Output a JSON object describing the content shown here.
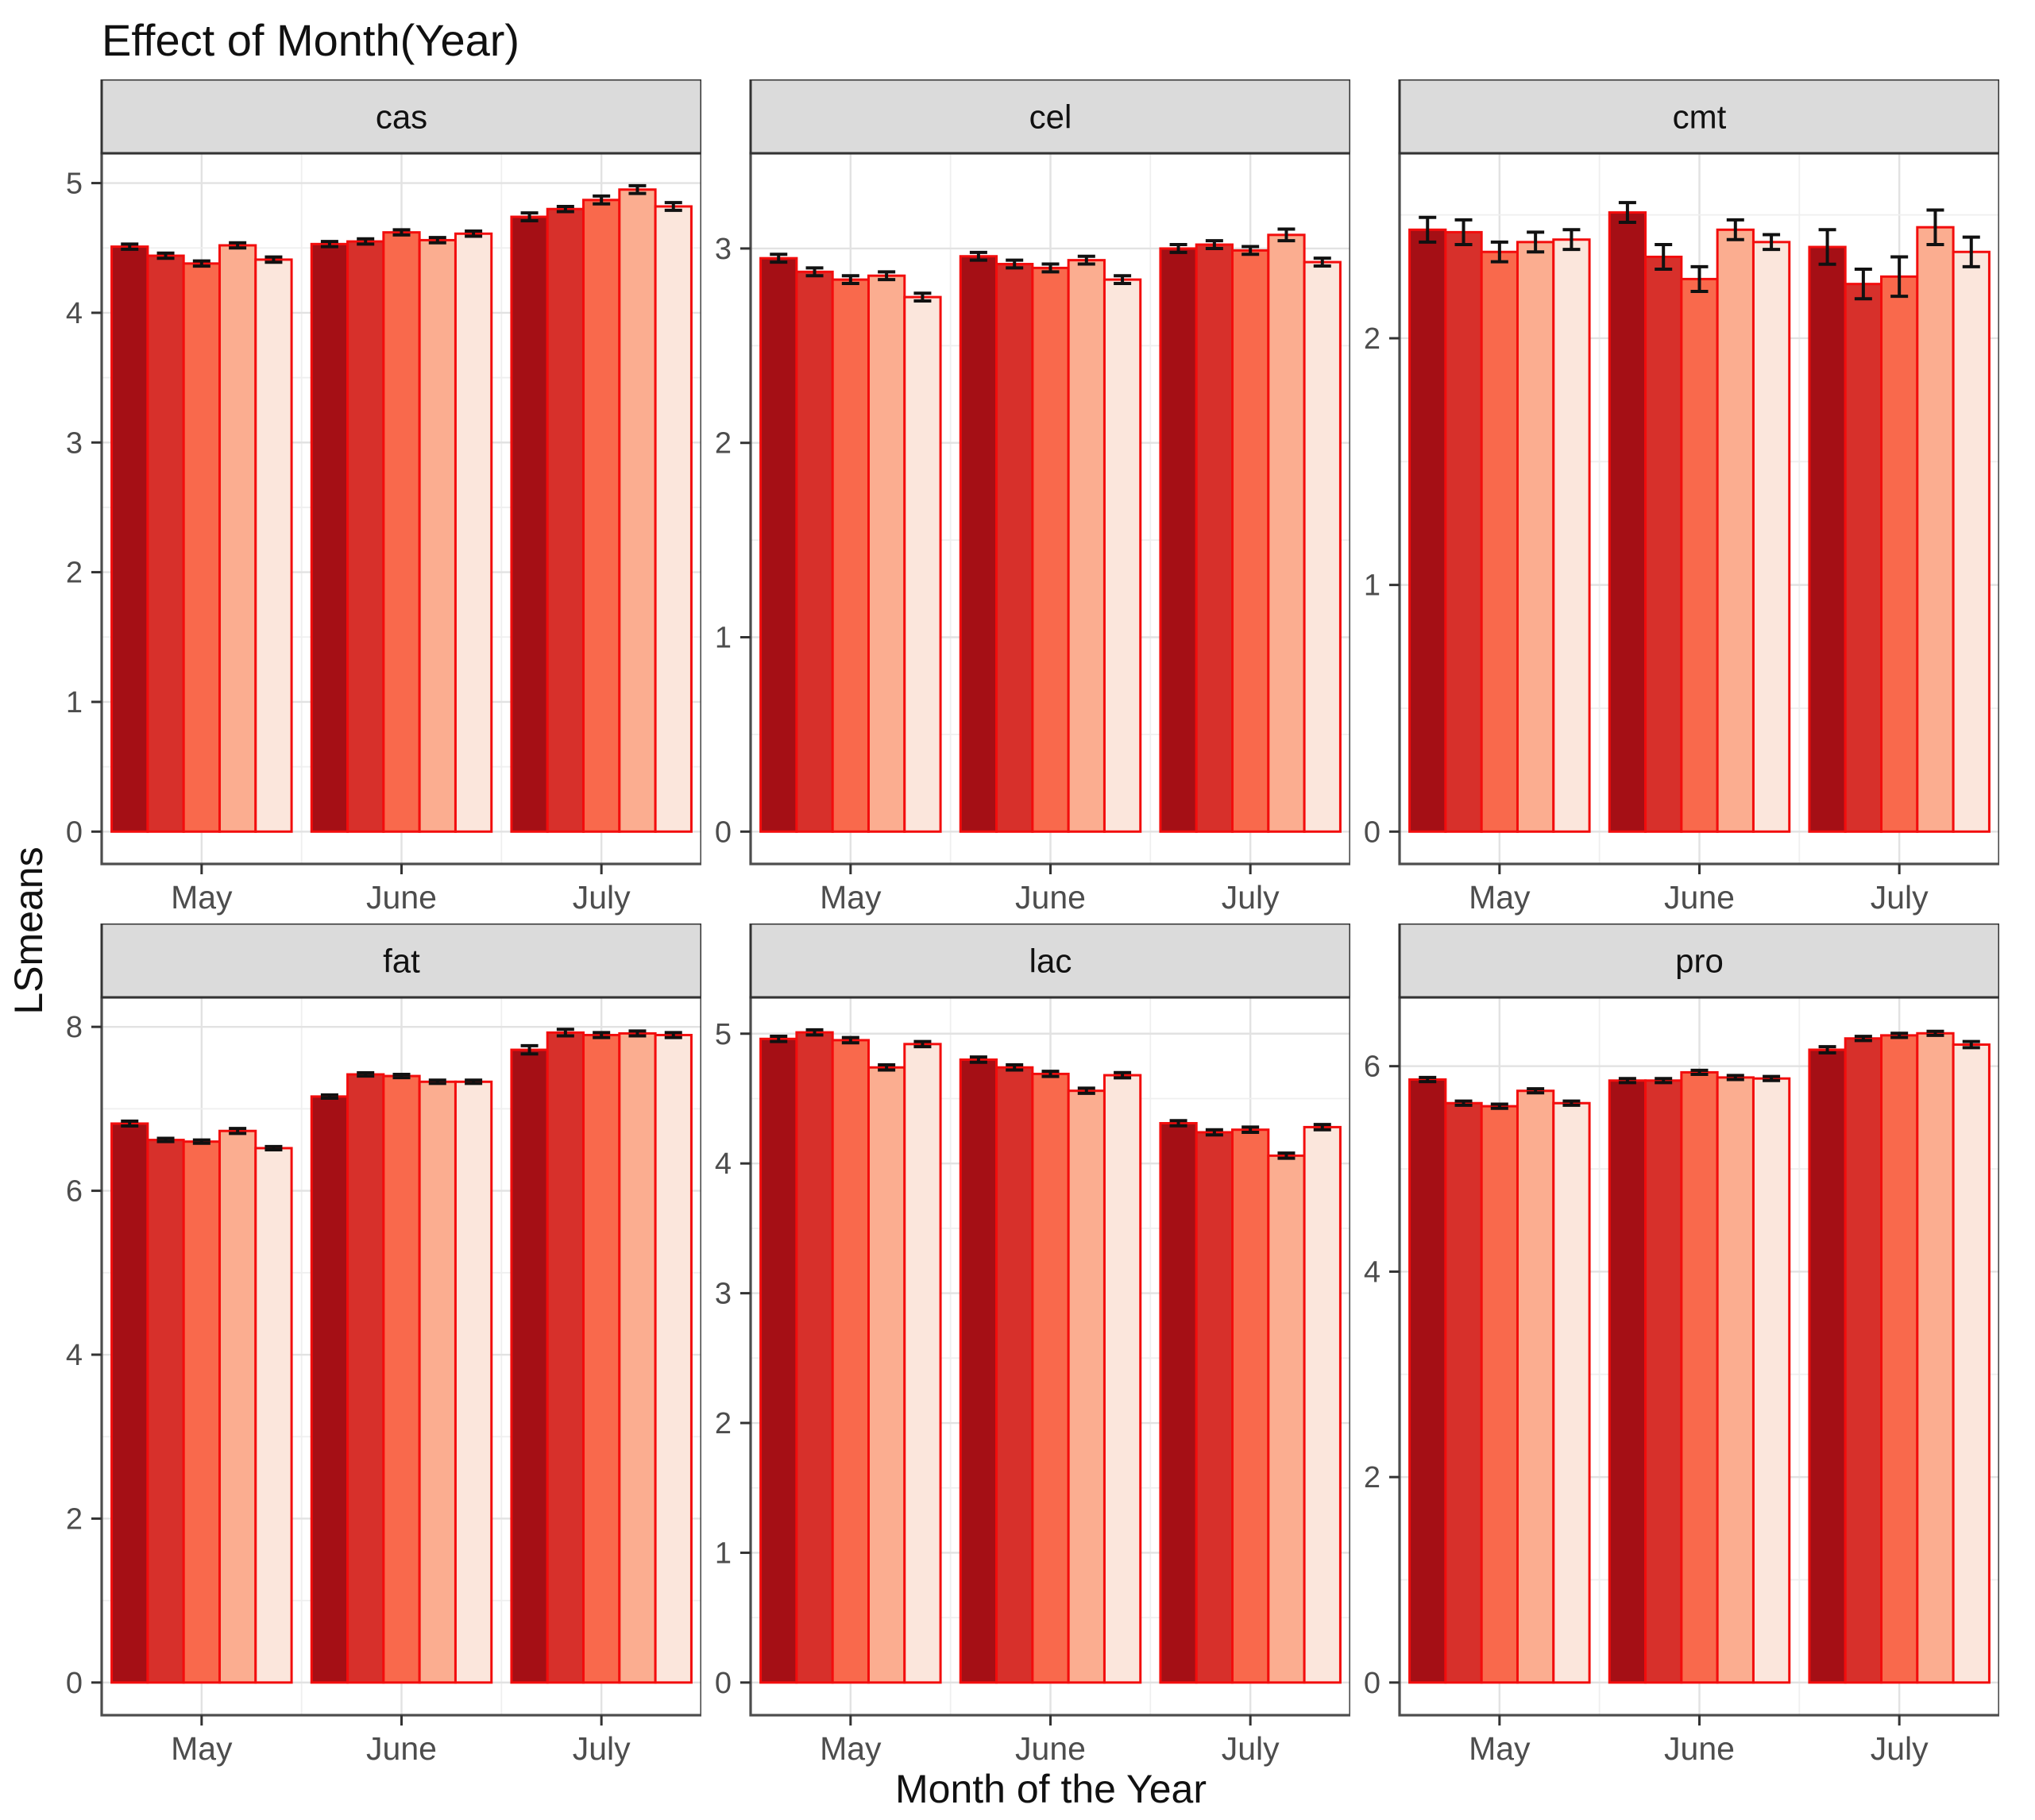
{
  "chart_data": {
    "type": "bar",
    "title": "Effect of Month(Year)",
    "xlabel": "Month of the Year",
    "ylabel": "LSmeans",
    "categories": [
      "May",
      "June",
      "July"
    ],
    "legend": "none",
    "grid": true,
    "bar_outline_color": "#F20D0D",
    "error_bar_color": "#111111",
    "strip_background": "#DBDBDB",
    "strip_border": "#333333",
    "panel_border": "#4D4D4D",
    "tick_label_color": "#4D4D4D",
    "series": [
      {
        "name": "bar-1",
        "color": "#A50F15"
      },
      {
        "name": "bar-2",
        "color": "#D7302B"
      },
      {
        "name": "bar-3",
        "color": "#F9694C"
      },
      {
        "name": "bar-4",
        "color": "#FBAD90"
      },
      {
        "name": "bar-5",
        "color": "#FBE6DC"
      }
    ],
    "facets": [
      {
        "label": "cas",
        "y_breaks": [
          0,
          1,
          2,
          3,
          4,
          5
        ],
        "y_minor": [
          0.5,
          1.5,
          2.5,
          3.5,
          4.5
        ],
        "y_max": 5.23,
        "values": {
          "May": [
            4.51,
            4.44,
            4.38,
            4.52,
            4.41
          ],
          "June": [
            4.53,
            4.55,
            4.62,
            4.56,
            4.61
          ],
          "July": [
            4.74,
            4.8,
            4.87,
            4.95,
            4.82
          ]
        },
        "errors": {
          "May": [
            0.02,
            0.02,
            0.02,
            0.02,
            0.02
          ],
          "June": [
            0.02,
            0.02,
            0.02,
            0.02,
            0.02
          ],
          "July": [
            0.03,
            0.02,
            0.03,
            0.03,
            0.03
          ]
        }
      },
      {
        "label": "cel",
        "y_breaks": [
          0,
          1,
          2,
          3
        ],
        "y_minor": [
          0.5,
          1.5,
          2.5
        ],
        "y_max": 3.49,
        "values": {
          "May": [
            2.95,
            2.88,
            2.84,
            2.86,
            2.75
          ],
          "June": [
            2.96,
            2.92,
            2.9,
            2.94,
            2.84
          ],
          "July": [
            3.0,
            3.02,
            2.99,
            3.07,
            2.93
          ]
        },
        "errors": {
          "May": [
            0.02,
            0.02,
            0.02,
            0.02,
            0.02
          ],
          "June": [
            0.02,
            0.02,
            0.02,
            0.02,
            0.02
          ],
          "July": [
            0.02,
            0.02,
            0.02,
            0.03,
            0.02
          ]
        }
      },
      {
        "label": "cmt",
        "y_breaks": [
          0,
          1,
          2
        ],
        "y_minor": [
          0.5,
          1.5,
          2.5
        ],
        "y_max": 2.75,
        "values": {
          "May": [
            2.44,
            2.43,
            2.35,
            2.39,
            2.4
          ],
          "June": [
            2.51,
            2.33,
            2.24,
            2.44,
            2.39
          ],
          "July": [
            2.37,
            2.22,
            2.25,
            2.45,
            2.35
          ]
        },
        "errors": {
          "May": [
            0.05,
            0.05,
            0.04,
            0.04,
            0.04
          ],
          "June": [
            0.04,
            0.05,
            0.05,
            0.04,
            0.03
          ],
          "July": [
            0.07,
            0.06,
            0.08,
            0.07,
            0.06
          ]
        }
      },
      {
        "label": "fat",
        "y_breaks": [
          0,
          2,
          4,
          6,
          8
        ],
        "y_minor": [
          1,
          3,
          5,
          7
        ],
        "y_max": 8.36,
        "values": {
          "May": [
            6.82,
            6.62,
            6.6,
            6.73,
            6.52
          ],
          "June": [
            7.15,
            7.42,
            7.4,
            7.33,
            7.33
          ],
          "July": [
            7.72,
            7.93,
            7.9,
            7.92,
            7.9
          ]
        },
        "errors": {
          "May": [
            0.03,
            0.02,
            0.02,
            0.03,
            0.02
          ],
          "June": [
            0.02,
            0.02,
            0.02,
            0.02,
            0.02
          ],
          "July": [
            0.05,
            0.04,
            0.03,
            0.03,
            0.03
          ]
        }
      },
      {
        "label": "lac",
        "y_breaks": [
          0,
          1,
          2,
          3,
          4,
          5
        ],
        "y_minor": [
          0.5,
          1.5,
          2.5,
          3.5,
          4.5
        ],
        "y_max": 5.28,
        "values": {
          "May": [
            4.96,
            5.01,
            4.95,
            4.74,
            4.92
          ],
          "June": [
            4.8,
            4.74,
            4.69,
            4.56,
            4.68
          ],
          "July": [
            4.31,
            4.24,
            4.26,
            4.06,
            4.28
          ]
        },
        "errors": {
          "May": [
            0.02,
            0.02,
            0.02,
            0.02,
            0.02
          ],
          "June": [
            0.02,
            0.02,
            0.02,
            0.02,
            0.02
          ],
          "July": [
            0.02,
            0.02,
            0.02,
            0.02,
            0.02
          ]
        }
      },
      {
        "label": "pro",
        "y_breaks": [
          0,
          2,
          4,
          6
        ],
        "y_minor": [
          1,
          3,
          5
        ],
        "y_max": 6.67,
        "values": {
          "May": [
            5.87,
            5.64,
            5.61,
            5.76,
            5.64
          ],
          "June": [
            5.86,
            5.86,
            5.94,
            5.89,
            5.88
          ],
          "July": [
            6.16,
            6.27,
            6.3,
            6.32,
            6.21
          ]
        },
        "errors": {
          "May": [
            0.02,
            0.02,
            0.02,
            0.02,
            0.02
          ],
          "June": [
            0.02,
            0.02,
            0.02,
            0.02,
            0.02
          ],
          "July": [
            0.03,
            0.02,
            0.02,
            0.02,
            0.03
          ]
        }
      }
    ]
  }
}
